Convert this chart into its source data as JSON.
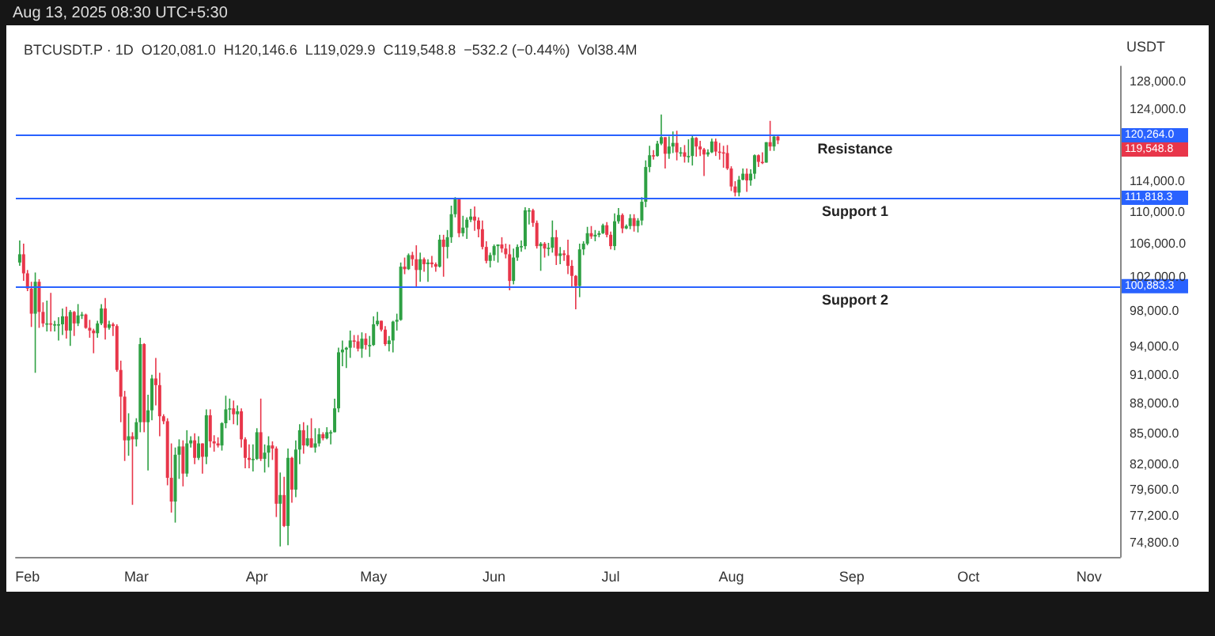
{
  "chart_data": {
    "type": "candlestick",
    "subtitle": "BTCUSDT.P · 1D  O120,081.0  H120,146.6  L119,029.9  C119,548.8  −532.2 (−0.44%)  Vol38.4M",
    "ylabel": "USDT",
    "annotations": [
      "Aug 13, 2025 08:30 UTC+5:30",
      "120,264.0",
      "119,548.8",
      "111,818.3",
      "100,883.3"
    ],
    "log": true,
    "grid": false,
    "xlim": [
      "2025-01-29",
      "2025-11-09"
    ],
    "xticks": [
      {
        "value": "2025-02-01",
        "label": "Feb"
      },
      {
        "value": "2025-03-01",
        "label": "Mar"
      },
      {
        "value": "2025-04-01",
        "label": "Apr"
      },
      {
        "value": "2025-05-01",
        "label": "May"
      },
      {
        "value": "2025-06-01",
        "label": "Jun"
      },
      {
        "value": "2025-07-01",
        "label": "Jul"
      },
      {
        "value": "2025-08-01",
        "label": "Aug"
      },
      {
        "value": "2025-09-01",
        "label": "Sep"
      },
      {
        "value": "2025-10-01",
        "label": "Oct"
      },
      {
        "value": "2025-11-01",
        "label": "Nov"
      }
    ],
    "ylim": [
      73600,
      130300
    ],
    "yticks": [
      {
        "value": 74800,
        "label": "74,800.0"
      },
      {
        "value": 77200,
        "label": "77,200.0"
      },
      {
        "value": 79600,
        "label": "79,600.0"
      },
      {
        "value": 82000,
        "label": "82,000.0"
      },
      {
        "value": 85000,
        "label": "85,000.0"
      },
      {
        "value": 88000,
        "label": "88,000.0"
      },
      {
        "value": 91000,
        "label": "91,000.0"
      },
      {
        "value": 94000,
        "label": "94,000.0"
      },
      {
        "value": 98000,
        "label": "98,000.0"
      },
      {
        "value": 102000,
        "label": "102,000.0"
      },
      {
        "value": 106000,
        "label": "106,000.0"
      },
      {
        "value": 110000,
        "label": "110,000.0"
      },
      {
        "value": 114000,
        "label": "114,000.0"
      },
      {
        "value": 124000,
        "label": "124,000.0"
      },
      {
        "value": 128000,
        "label": "128,000.0"
      }
    ],
    "ref_lines": [
      {
        "axis": "y",
        "value": 120264,
        "label": "Resistance",
        "color": "#2962ff"
      },
      {
        "axis": "y",
        "value": 111818.3,
        "label": "Support 1",
        "color": "#2962ff"
      },
      {
        "axis": "y",
        "value": 100883.3,
        "label": "Support 2",
        "color": "#2962ff"
      }
    ],
    "x": [
      "2025-01-30",
      "2025-01-31",
      "2025-02-01",
      "2025-02-02",
      "2025-02-03",
      "2025-02-04",
      "2025-02-05",
      "2025-02-06",
      "2025-02-07",
      "2025-02-08",
      "2025-02-09",
      "2025-02-10",
      "2025-02-11",
      "2025-02-12",
      "2025-02-13",
      "2025-02-14",
      "2025-02-15",
      "2025-02-16",
      "2025-02-17",
      "2025-02-18",
      "2025-02-19",
      "2025-02-20",
      "2025-02-21",
      "2025-02-22",
      "2025-02-23",
      "2025-02-24",
      "2025-02-25",
      "2025-02-26",
      "2025-02-27",
      "2025-02-28",
      "2025-03-01",
      "2025-03-02",
      "2025-03-03",
      "2025-03-04",
      "2025-03-05",
      "2025-03-06",
      "2025-03-07",
      "2025-03-08",
      "2025-03-09",
      "2025-03-10",
      "2025-03-11",
      "2025-03-12",
      "2025-03-13",
      "2025-03-14",
      "2025-03-15",
      "2025-03-16",
      "2025-03-17",
      "2025-03-18",
      "2025-03-19",
      "2025-03-20",
      "2025-03-21",
      "2025-03-22",
      "2025-03-23",
      "2025-03-24",
      "2025-03-25",
      "2025-03-26",
      "2025-03-27",
      "2025-03-28",
      "2025-03-29",
      "2025-03-30",
      "2025-03-31",
      "2025-04-01",
      "2025-04-02",
      "2025-04-03",
      "2025-04-04",
      "2025-04-05",
      "2025-04-06",
      "2025-04-07",
      "2025-04-08",
      "2025-04-09",
      "2025-04-10",
      "2025-04-11",
      "2025-04-12",
      "2025-04-13",
      "2025-04-14",
      "2025-04-15",
      "2025-04-16",
      "2025-04-17",
      "2025-04-18",
      "2025-04-19",
      "2025-04-20",
      "2025-04-21",
      "2025-04-22",
      "2025-04-23",
      "2025-04-24",
      "2025-04-25",
      "2025-04-26",
      "2025-04-27",
      "2025-04-28",
      "2025-04-29",
      "2025-04-30",
      "2025-05-01",
      "2025-05-02",
      "2025-05-03",
      "2025-05-04",
      "2025-05-05",
      "2025-05-06",
      "2025-05-07",
      "2025-05-08",
      "2025-05-09",
      "2025-05-10",
      "2025-05-11",
      "2025-05-12",
      "2025-05-13",
      "2025-05-14",
      "2025-05-15",
      "2025-05-16",
      "2025-05-17",
      "2025-05-18",
      "2025-05-19",
      "2025-05-20",
      "2025-05-21",
      "2025-05-22",
      "2025-05-23",
      "2025-05-24",
      "2025-05-25",
      "2025-05-26",
      "2025-05-27",
      "2025-05-28",
      "2025-05-29",
      "2025-05-30",
      "2025-05-31",
      "2025-06-01",
      "2025-06-02",
      "2025-06-03",
      "2025-06-04",
      "2025-06-05",
      "2025-06-06",
      "2025-06-07",
      "2025-06-08",
      "2025-06-09",
      "2025-06-10",
      "2025-06-11",
      "2025-06-12",
      "2025-06-13",
      "2025-06-14",
      "2025-06-15",
      "2025-06-16",
      "2025-06-17",
      "2025-06-18",
      "2025-06-19",
      "2025-06-20",
      "2025-06-21",
      "2025-06-22",
      "2025-06-23",
      "2025-06-24",
      "2025-06-25",
      "2025-06-26",
      "2025-06-27",
      "2025-06-28",
      "2025-06-29",
      "2025-06-30",
      "2025-07-01",
      "2025-07-02",
      "2025-07-03",
      "2025-07-04",
      "2025-07-05",
      "2025-07-06",
      "2025-07-07",
      "2025-07-08",
      "2025-07-09",
      "2025-07-10",
      "2025-07-11",
      "2025-07-12",
      "2025-07-13",
      "2025-07-14",
      "2025-07-15",
      "2025-07-16",
      "2025-07-17",
      "2025-07-18",
      "2025-07-19",
      "2025-07-20",
      "2025-07-21",
      "2025-07-22",
      "2025-07-23",
      "2025-07-24",
      "2025-07-25",
      "2025-07-26",
      "2025-07-27",
      "2025-07-28",
      "2025-07-29",
      "2025-07-30",
      "2025-07-31",
      "2025-08-01",
      "2025-08-02",
      "2025-08-03",
      "2025-08-04",
      "2025-08-05",
      "2025-08-06",
      "2025-08-07",
      "2025-08-08",
      "2025-08-09",
      "2025-08-10",
      "2025-08-11",
      "2025-08-12",
      "2025-08-13"
    ],
    "ohlc": [
      [
        103700,
        106400,
        103300,
        104700
      ],
      [
        104700,
        106000,
        101500,
        102400
      ],
      [
        102400,
        102800,
        100300,
        100600
      ],
      [
        100600,
        101400,
        96200,
        97700
      ],
      [
        97700,
        102500,
        91200,
        101400
      ],
      [
        101400,
        101700,
        96100,
        97900
      ],
      [
        97900,
        99000,
        96200,
        96600
      ],
      [
        96600,
        99200,
        95700,
        96600
      ],
      [
        96600,
        100100,
        95700,
        96500
      ],
      [
        96500,
        96900,
        95700,
        96500
      ],
      [
        96500,
        97300,
        94700,
        96500
      ],
      [
        96500,
        98300,
        95300,
        97400
      ],
      [
        97400,
        98500,
        94900,
        95800
      ],
      [
        95800,
        98100,
        94100,
        97900
      ],
      [
        97900,
        98000,
        95200,
        96600
      ],
      [
        96600,
        98800,
        96300,
        97500
      ],
      [
        97500,
        97900,
        97100,
        97600
      ],
      [
        97600,
        97700,
        96000,
        96100
      ],
      [
        96100,
        97000,
        95000,
        95800
      ],
      [
        95800,
        96000,
        93300,
        95500
      ],
      [
        95500,
        96900,
        95000,
        96600
      ],
      [
        96600,
        98800,
        96400,
        98300
      ],
      [
        98300,
        99500,
        94800,
        96100
      ],
      [
        96100,
        96900,
        95900,
        96500
      ],
      [
        96500,
        96700,
        95200,
        96300
      ],
      [
        96300,
        96500,
        91300,
        91500
      ],
      [
        91500,
        92500,
        86100,
        88700
      ],
      [
        88700,
        89300,
        82300,
        84300
      ],
      [
        84300,
        87000,
        82800,
        84700
      ],
      [
        84700,
        85100,
        78200,
        84400
      ],
      [
        84400,
        86500,
        83700,
        86100
      ],
      [
        86100,
        95000,
        85100,
        94300
      ],
      [
        94300,
        94400,
        85100,
        86100
      ],
      [
        86100,
        88900,
        81400,
        87300
      ],
      [
        87300,
        91000,
        86300,
        90600
      ],
      [
        90600,
        92800,
        87800,
        89900
      ],
      [
        89900,
        91200,
        84700,
        86700
      ],
      [
        86700,
        86900,
        85900,
        86200
      ],
      [
        86200,
        86500,
        80000,
        80700
      ],
      [
        80700,
        84000,
        77500,
        78500
      ],
      [
        78500,
        83600,
        76600,
        82900
      ],
      [
        82900,
        84400,
        80600,
        83700
      ],
      [
        83700,
        84300,
        79900,
        81100
      ],
      [
        81100,
        85300,
        80800,
        84000
      ],
      [
        84000,
        84700,
        83600,
        84300
      ],
      [
        84300,
        85000,
        82000,
        82600
      ],
      [
        82600,
        84700,
        82400,
        84000
      ],
      [
        84000,
        84000,
        81100,
        82700
      ],
      [
        82700,
        87400,
        82000,
        86800
      ],
      [
        86800,
        87400,
        83600,
        84200
      ],
      [
        84200,
        84800,
        83200,
        84000
      ],
      [
        84000,
        84600,
        83600,
        83800
      ],
      [
        83800,
        86100,
        83300,
        86000
      ],
      [
        86000,
        88800,
        85500,
        87400
      ],
      [
        87400,
        88500,
        86300,
        87500
      ],
      [
        87500,
        88300,
        85900,
        86900
      ],
      [
        86900,
        87800,
        85800,
        87200
      ],
      [
        87200,
        87500,
        83600,
        84400
      ],
      [
        84400,
        84600,
        81600,
        82600
      ],
      [
        82600,
        83900,
        81600,
        82400
      ],
      [
        82400,
        83900,
        81300,
        82500
      ],
      [
        82500,
        85500,
        82400,
        85100
      ],
      [
        85100,
        88500,
        82300,
        82500
      ],
      [
        82500,
        83900,
        81200,
        83100
      ],
      [
        83100,
        84700,
        81700,
        83800
      ],
      [
        83800,
        84200,
        82400,
        83500
      ],
      [
        83500,
        83700,
        77100,
        78300
      ],
      [
        78300,
        81200,
        74500,
        79100
      ],
      [
        79100,
        80800,
        76200,
        76300
      ],
      [
        76300,
        83500,
        74600,
        82600
      ],
      [
        82600,
        82700,
        78400,
        79600
      ],
      [
        79600,
        84300,
        78900,
        83400
      ],
      [
        83400,
        85900,
        82000,
        85300
      ],
      [
        85300,
        86100,
        83000,
        83800
      ],
      [
        83800,
        85800,
        83700,
        84500
      ],
      [
        84500,
        86500,
        83600,
        83600
      ],
      [
        83600,
        85500,
        83100,
        84000
      ],
      [
        84000,
        85500,
        83700,
        84900
      ],
      [
        84900,
        85100,
        84300,
        84500
      ],
      [
        84500,
        85600,
        84400,
        85100
      ],
      [
        85100,
        85300,
        83900,
        85100
      ],
      [
        85100,
        88500,
        85100,
        87500
      ],
      [
        87500,
        93900,
        87100,
        93400
      ],
      [
        93400,
        94700,
        91900,
        93700
      ],
      [
        93700,
        94000,
        91700,
        93900
      ],
      [
        93900,
        95800,
        92800,
        94700
      ],
      [
        94700,
        95300,
        93900,
        94600
      ],
      [
        94600,
        95300,
        93500,
        93800
      ],
      [
        93800,
        95600,
        92800,
        94900
      ],
      [
        94900,
        95500,
        93700,
        94200
      ],
      [
        94200,
        95200,
        92900,
        94200
      ],
      [
        94200,
        97400,
        94100,
        96500
      ],
      [
        96500,
        97900,
        96300,
        96900
      ],
      [
        96900,
        96900,
        95700,
        95900
      ],
      [
        95900,
        96300,
        94100,
        94300
      ],
      [
        94300,
        95200,
        93500,
        94700
      ],
      [
        94700,
        96900,
        93400,
        96800
      ],
      [
        96800,
        97700,
        95800,
        97000
      ],
      [
        97000,
        103700,
        96900,
        103200
      ],
      [
        103200,
        104300,
        102300,
        102900
      ],
      [
        102900,
        104800,
        102800,
        104600
      ],
      [
        104600,
        105000,
        103300,
        104100
      ],
      [
        104100,
        105800,
        100700,
        102800
      ],
      [
        102800,
        104900,
        101400,
        104100
      ],
      [
        104100,
        104300,
        102600,
        103500
      ],
      [
        103500,
        104100,
        101400,
        103700
      ],
      [
        103700,
        104500,
        103100,
        103500
      ],
      [
        103500,
        103700,
        102600,
        103200
      ],
      [
        103200,
        107100,
        103100,
        106500
      ],
      [
        106500,
        107100,
        102000,
        105600
      ],
      [
        105600,
        107700,
        104200,
        106800
      ],
      [
        106800,
        110800,
        106100,
        109700
      ],
      [
        109700,
        111900,
        109300,
        111700
      ],
      [
        111700,
        111800,
        106800,
        107300
      ],
      [
        107300,
        109500,
        106900,
        108000
      ],
      [
        108000,
        109300,
        106600,
        109000
      ],
      [
        109000,
        110400,
        108700,
        109400
      ],
      [
        109400,
        110700,
        107600,
        108900
      ],
      [
        108900,
        109300,
        106800,
        107800
      ],
      [
        107800,
        108900,
        105300,
        105600
      ],
      [
        105600,
        106300,
        103600,
        103900
      ],
      [
        103900,
        104900,
        103100,
        104600
      ],
      [
        104600,
        105900,
        103900,
        105700
      ],
      [
        105700,
        105900,
        103700,
        105900
      ],
      [
        105900,
        106800,
        104900,
        105400
      ],
      [
        105400,
        106000,
        104200,
        104700
      ],
      [
        104700,
        105900,
        100400,
        101500
      ],
      [
        101500,
        105400,
        101100,
        104300
      ],
      [
        104300,
        105900,
        103900,
        105600
      ],
      [
        105600,
        106400,
        105000,
        105700
      ],
      [
        105700,
        110600,
        105300,
        110200
      ],
      [
        110200,
        110500,
        108400,
        110200
      ],
      [
        110200,
        110400,
        108100,
        108600
      ],
      [
        108600,
        108900,
        105400,
        105700
      ],
      [
        105700,
        106200,
        102700,
        106000
      ],
      [
        106000,
        106200,
        104300,
        105400
      ],
      [
        105400,
        106100,
        104500,
        105500
      ],
      [
        105500,
        108900,
        104900,
        106800
      ],
      [
        106800,
        107700,
        103400,
        104500
      ],
      [
        104500,
        105600,
        103500,
        104800
      ],
      [
        104800,
        105200,
        103900,
        104600
      ],
      [
        104600,
        106500,
        102300,
        103300
      ],
      [
        103300,
        104000,
        100800,
        102100
      ],
      [
        102100,
        102200,
        98200,
        100900
      ],
      [
        100900,
        106000,
        99600,
        105300
      ],
      [
        105300,
        106300,
        104600,
        106000
      ],
      [
        106000,
        108100,
        105800,
        107300
      ],
      [
        107300,
        108200,
        106600,
        106900
      ],
      [
        106900,
        107700,
        106300,
        107100
      ],
      [
        107100,
        107600,
        106800,
        107300
      ],
      [
        107300,
        108500,
        107200,
        108300
      ],
      [
        108300,
        108700,
        106800,
        107100
      ],
      [
        107100,
        107500,
        105300,
        105700
      ],
      [
        105700,
        109800,
        105200,
        108800
      ],
      [
        108800,
        110500,
        108500,
        109600
      ],
      [
        109600,
        109800,
        107300,
        107900
      ],
      [
        107900,
        108400,
        107800,
        108200
      ],
      [
        108200,
        109700,
        107800,
        109200
      ],
      [
        109200,
        109700,
        107500,
        108200
      ],
      [
        108200,
        109200,
        107400,
        108900
      ],
      [
        108900,
        111900,
        108300,
        111300
      ],
      [
        111300,
        116800,
        110600,
        115900
      ],
      [
        115900,
        118800,
        115200,
        117500
      ],
      [
        117500,
        118200,
        116900,
        117400
      ],
      [
        117400,
        119500,
        117300,
        119100
      ],
      [
        119100,
        123200,
        118900,
        120000
      ],
      [
        120000,
        120000,
        115700,
        117700
      ],
      [
        117700,
        120100,
        117000,
        118700
      ],
      [
        118700,
        120800,
        117800,
        119200
      ],
      [
        119200,
        120900,
        116800,
        117900
      ],
      [
        117900,
        118600,
        117300,
        117900
      ],
      [
        117900,
        118900,
        116500,
        117300
      ],
      [
        117300,
        119700,
        116500,
        117400
      ],
      [
        117400,
        120200,
        116100,
        119900
      ],
      [
        119900,
        120000,
        117300,
        118700
      ],
      [
        118700,
        119500,
        117400,
        118300
      ],
      [
        118300,
        118500,
        114700,
        117600
      ],
      [
        117600,
        118300,
        117300,
        117900
      ],
      [
        117900,
        119800,
        117800,
        119400
      ],
      [
        119400,
        119800,
        117400,
        118000
      ],
      [
        118000,
        119200,
        116900,
        117900
      ],
      [
        117900,
        118800,
        115800,
        117800
      ],
      [
        117800,
        118900,
        115500,
        115700
      ],
      [
        115700,
        116000,
        112700,
        113300
      ],
      [
        113300,
        114000,
        112000,
        112500
      ],
      [
        112500,
        114700,
        112000,
        114200
      ],
      [
        114200,
        115700,
        114100,
        115000
      ],
      [
        115000,
        115700,
        112600,
        114100
      ],
      [
        114100,
        115600,
        113400,
        115000
      ],
      [
        115000,
        117600,
        114300,
        117500
      ],
      [
        117500,
        117600,
        115900,
        116600
      ],
      [
        116600,
        117900,
        116300,
        116500
      ],
      [
        116500,
        119300,
        116500,
        119300
      ],
      [
        119300,
        122300,
        118100,
        118700
      ],
      [
        118700,
        120300,
        118100,
        120081
      ],
      [
        120081,
        120146.6,
        119029.9,
        119548.8
      ]
    ]
  }
}
